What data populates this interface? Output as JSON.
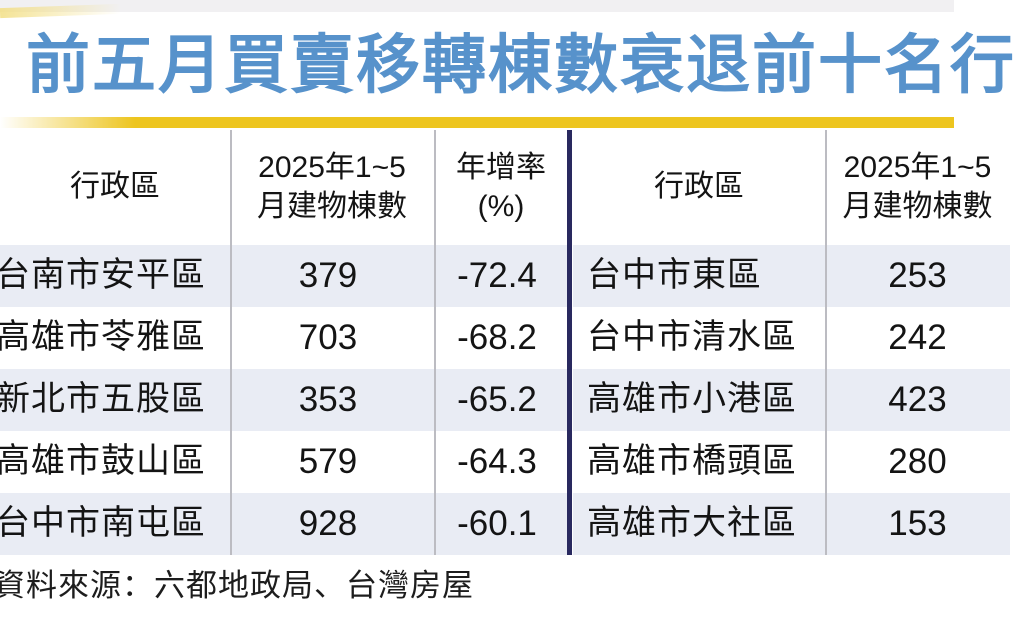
{
  "title": "前五月買賣移轉棟數衰退前十名行",
  "colors": {
    "title_blue": "#5792cb",
    "underline_yellow": "#edc51f",
    "divider_navy": "#29295f",
    "row_alt_bg": "#e9ecf4",
    "separator_gray": "#bcbcc2"
  },
  "left_table": {
    "headers": {
      "district": "行政區",
      "count_line1": "2025年1~5",
      "count_line2": "月建物棟數",
      "yoy_line1": "年增率",
      "yoy_line2": "(%)"
    },
    "rows": [
      {
        "district": "台南市安平區",
        "count": "379",
        "yoy": "-72.4"
      },
      {
        "district": "高雄市苓雅區",
        "count": "703",
        "yoy": "-68.2"
      },
      {
        "district": "新北市五股區",
        "count": "353",
        "yoy": "-65.2"
      },
      {
        "district": "高雄市鼓山區",
        "count": "579",
        "yoy": "-64.3"
      },
      {
        "district": "台中市南屯區",
        "count": "928",
        "yoy": "-60.1"
      }
    ]
  },
  "right_table": {
    "headers": {
      "district": "行政區",
      "count_line1": "2025年1~5",
      "count_line2": "月建物棟數"
    },
    "rows": [
      {
        "district": "台中市東區",
        "count": "253"
      },
      {
        "district": "台中市清水區",
        "count": "242"
      },
      {
        "district": "高雄市小港區",
        "count": "423"
      },
      {
        "district": "高雄市橋頭區",
        "count": "280"
      },
      {
        "district": "高雄市大社區",
        "count": "153"
      }
    ]
  },
  "footer": {
    "source": "資料來源：六都地政局、台灣房屋"
  },
  "chart_data": {
    "type": "table",
    "title": "前五月買賣移轉棟數衰退前十名行",
    "tables": [
      {
        "headers": [
          "行政區",
          "2025年1~5月建物棟數",
          "年增率(%)"
        ],
        "rows": [
          [
            "台南市安平區",
            379,
            -72.4
          ],
          [
            "高雄市苓雅區",
            703,
            -68.2
          ],
          [
            "新北市五股區",
            353,
            -65.2
          ],
          [
            "高雄市鼓山區",
            579,
            -64.3
          ],
          [
            "台中市南屯區",
            928,
            -60.1
          ]
        ]
      },
      {
        "headers": [
          "行政區",
          "2025年1~5月建物棟數"
        ],
        "rows": [
          [
            "台中市東區",
            253
          ],
          [
            "台中市清水區",
            242
          ],
          [
            "高雄市小港區",
            423
          ],
          [
            "高雄市橋頭區",
            280
          ],
          [
            "高雄市大社區",
            153
          ]
        ]
      }
    ],
    "source": "資料來源：六都地政局、台灣房屋"
  }
}
